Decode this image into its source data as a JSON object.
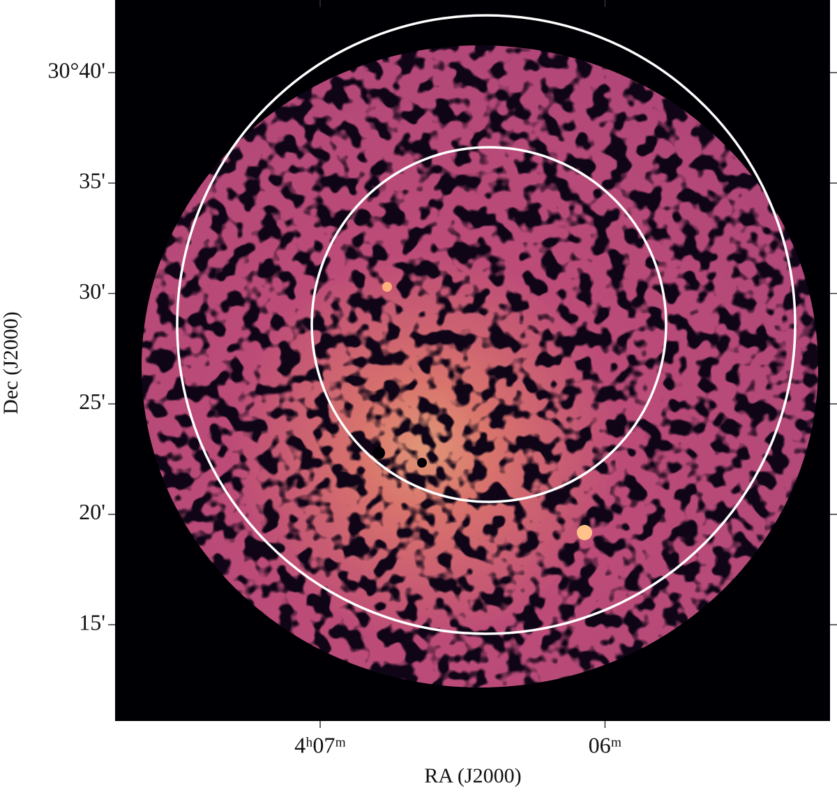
{
  "chart_data": {
    "type": "image",
    "xlabel": "RA (J2000)",
    "ylabel": "Dec (J2000)",
    "xlim": [
      7.72,
      5.21
    ],
    "xticks": [
      {
        "value": 7,
        "label": "4ʰ07ᵐ"
      },
      {
        "value": 6,
        "label": "06ᵐ"
      }
    ],
    "ylim": [
      10.64,
      43.29
    ],
    "yticks": [
      {
        "value": 40,
        "label": "30°40'"
      },
      {
        "value": 35,
        "label": "35'"
      },
      {
        "value": 30,
        "label": "30'"
      },
      {
        "value": 25,
        "label": "25'"
      },
      {
        "value": 20,
        "label": "20'"
      },
      {
        "value": 15,
        "label": "15'"
      }
    ]
  }
}
